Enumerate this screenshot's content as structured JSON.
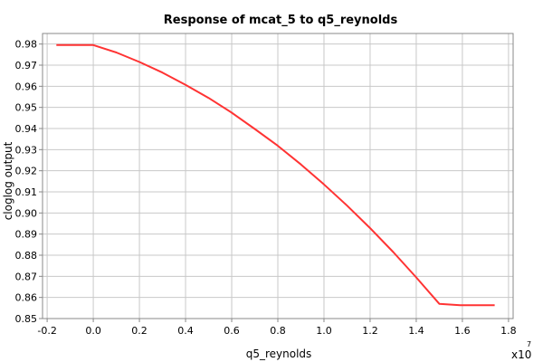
{
  "chart_data": {
    "type": "line",
    "title": "Response of mcat_5 to q5_reynolds",
    "xlabel": "q5_reynolds",
    "ylabel": "cloglog output",
    "x_multiplier_label": "x10",
    "x_multiplier_exponent": "7",
    "xlim": [
      -0.22,
      1.82
    ],
    "ylim": [
      0.85,
      0.985
    ],
    "grid": true,
    "x_ticks": [
      -0.2,
      0.0,
      0.2,
      0.4,
      0.6,
      0.8,
      1.0,
      1.2,
      1.4,
      1.6,
      1.8
    ],
    "x_tick_labels": [
      "-0.2",
      "0.0",
      "0.2",
      "0.4",
      "0.6",
      "0.8",
      "1.0",
      "1.2",
      "1.4",
      "1.6",
      "1.8"
    ],
    "y_ticks": [
      0.85,
      0.86,
      0.87,
      0.88,
      0.89,
      0.9,
      0.91,
      0.92,
      0.93,
      0.94,
      0.95,
      0.96,
      0.97,
      0.98
    ],
    "y_tick_labels": [
      "0.85",
      "0.86",
      "0.87",
      "0.88",
      "0.89",
      "0.90",
      "0.91",
      "0.92",
      "0.93",
      "0.94",
      "0.95",
      "0.96",
      "0.97",
      "0.98"
    ],
    "series": [
      {
        "color": "#ff3333",
        "x": [
          -0.16,
          0.0,
          0.1,
          0.2,
          0.3,
          0.4,
          0.5,
          0.6,
          0.7,
          0.8,
          0.9,
          1.0,
          1.1,
          1.2,
          1.3,
          1.4,
          1.5,
          1.59,
          1.74
        ],
        "y": [
          0.9795,
          0.9795,
          0.976,
          0.9715,
          0.9665,
          0.9607,
          0.9545,
          0.9475,
          0.9398,
          0.9318,
          0.923,
          0.9135,
          0.9035,
          0.8928,
          0.8815,
          0.8695,
          0.857,
          0.8563,
          0.8563
        ]
      }
    ]
  }
}
